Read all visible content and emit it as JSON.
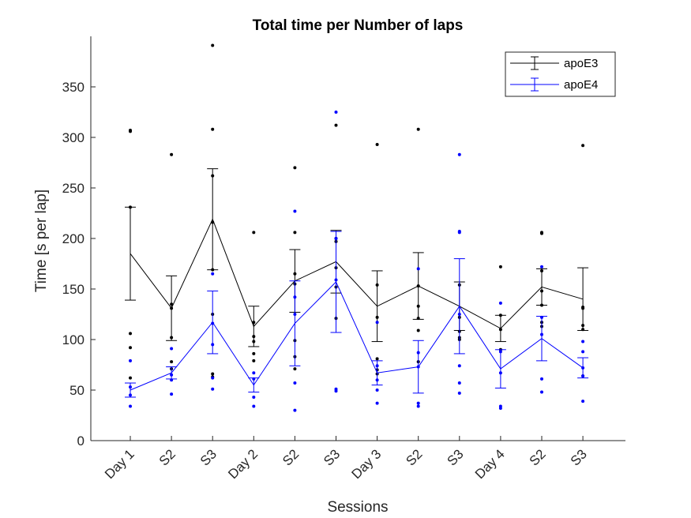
{
  "chart_data": {
    "type": "line",
    "title": "Total time per Number of laps",
    "xlabel": "Sessions",
    "ylabel": "Time [s per lap]",
    "categories": [
      "Day 1",
      "S2",
      "S3",
      "Day 2",
      "S2",
      "S3",
      "Day 3",
      "S2",
      "S3",
      "Day 4",
      "S2",
      "S3"
    ],
    "ylim": [
      0,
      400
    ],
    "yticks": [
      0,
      50,
      100,
      150,
      200,
      250,
      300,
      350
    ],
    "grid": false,
    "legend_position": "top-right",
    "series": [
      {
        "name": "apoE3",
        "color": "#000000",
        "values": [
          185,
          131,
          219,
          113,
          158,
          177,
          133,
          153,
          133,
          111,
          152,
          140
        ],
        "error": [
          46,
          32,
          50,
          20,
          31,
          31,
          35,
          33,
          24,
          13,
          18,
          31
        ],
        "points": [
          [
            307,
            306,
            231,
            106,
            92,
            62
          ],
          [
            283,
            135,
            131,
            102,
            78,
            71
          ],
          [
            391,
            308,
            262,
            216,
            169,
            125,
            66,
            63
          ],
          [
            206,
            117,
            103,
            98,
            86,
            79
          ],
          [
            270,
            206,
            165,
            155,
            99,
            83,
            71
          ],
          [
            312,
            200,
            197,
            171,
            152,
            121
          ],
          [
            293,
            154,
            122,
            81,
            70,
            66
          ],
          [
            308,
            153,
            133,
            121,
            109,
            78
          ],
          [
            154,
            122,
            108,
            102,
            100
          ],
          [
            172,
            124,
            110,
            90
          ],
          [
            206,
            205,
            168,
            148,
            134,
            117,
            113
          ],
          [
            292,
            132,
            131,
            114,
            110,
            64
          ]
        ]
      },
      {
        "name": "apoE4",
        "color": "#0000ff",
        "values": [
          50,
          67,
          117,
          55,
          116,
          157,
          67,
          73,
          133,
          71,
          101,
          72
        ],
        "error": [
          7,
          6,
          31,
          7,
          42,
          50,
          12,
          26,
          47,
          19,
          22,
          10
        ],
        "points": [
          [
            79,
            53,
            45,
            34
          ],
          [
            91,
            65,
            60,
            46
          ],
          [
            165,
            116,
            95,
            62,
            51
          ],
          [
            67,
            61,
            43,
            34
          ],
          [
            227,
            142,
            125,
            57,
            30
          ],
          [
            325,
            200,
            159,
            51,
            49
          ],
          [
            117,
            74,
            60,
            50,
            37
          ],
          [
            170,
            87,
            73,
            37,
            34
          ],
          [
            283,
            207,
            206,
            125,
            74,
            57,
            47
          ],
          [
            136,
            88,
            67,
            34,
            32
          ],
          [
            172,
            122,
            105,
            61,
            48
          ],
          [
            98,
            88,
            72,
            64,
            39
          ]
        ]
      }
    ]
  }
}
